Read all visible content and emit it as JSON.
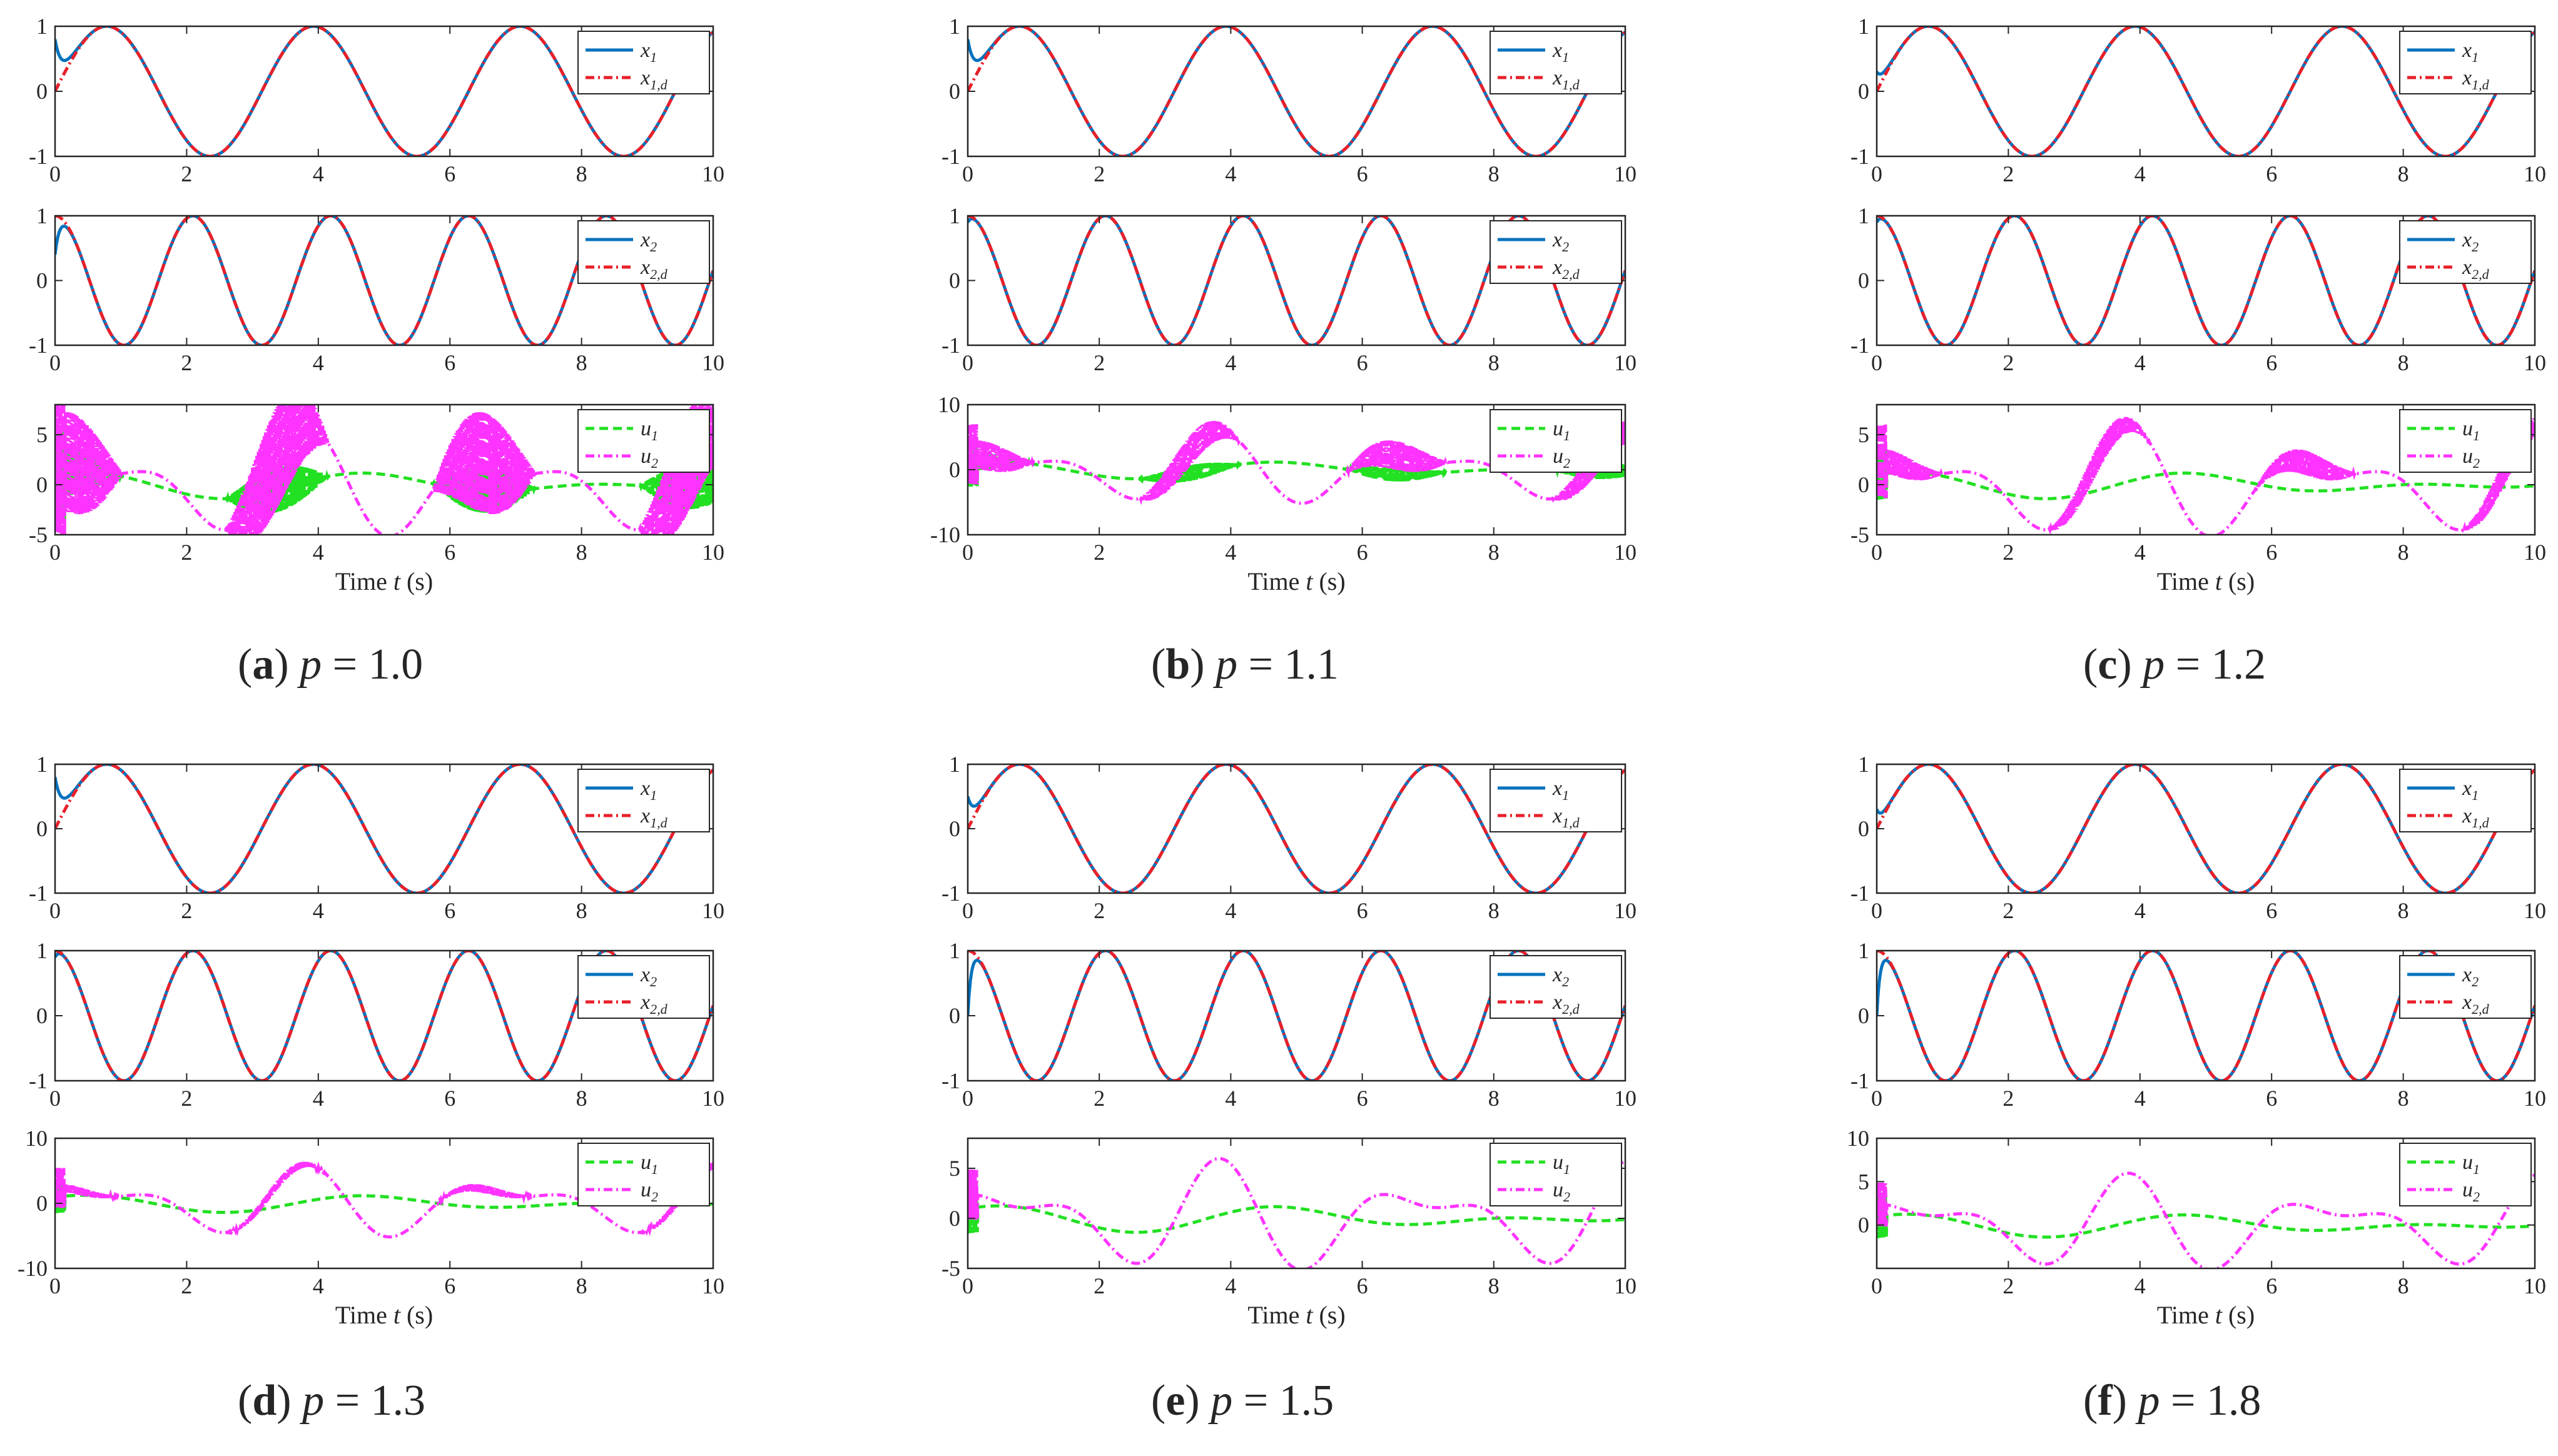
{
  "chart_data": {
    "type": "line",
    "layout": "2x3 grid of panels; each panel has three stacked subplots",
    "colors": {
      "x": "#0072bd",
      "xd": "#e8202a",
      "u1": "#22e022",
      "u2": "#ff33ff",
      "axis": "#262626"
    },
    "panels": [
      {
        "letter": "a",
        "label": "p",
        "value": "1.0",
        "caption": {
          "open": "(",
          "letter": "a",
          "close": ")",
          "variable": "p",
          "equals": "=",
          "value": "1.0"
        },
        "x_ticks": [
          "0",
          "2",
          "4",
          "6",
          "8",
          "10"
        ],
        "xlabel": "Time t (s)",
        "xrange": [
          0,
          10
        ],
        "subplots": [
          {
            "id": "x1",
            "yrange": [
              -1,
              1
            ],
            "y_ticks": [
              "1",
              "0",
              "-1"
            ],
            "series": [
              {
                "name": "x1",
                "legend": "x",
                "legend_sub": "1",
                "style": "solid",
                "signal": "sin(2t)",
                "initial": 0.8,
                "transient_time": 0.3
              },
              {
                "name": "x1d",
                "legend": "x",
                "legend_sub": "1,d",
                "style": "dashdot",
                "signal": "sin(2t)"
              }
            ]
          },
          {
            "id": "x2",
            "yrange": [
              -1,
              1
            ],
            "y_ticks": [
              "1",
              "0",
              "-1"
            ],
            "series": [
              {
                "name": "x2",
                "legend": "x",
                "legend_sub": "2",
                "style": "solid",
                "signal": "cos(3t)",
                "initial": 0.4,
                "transient_time": 0.2
              },
              {
                "name": "x2d",
                "legend": "x",
                "legend_sub": "2,d",
                "style": "dashdot",
                "signal": "cos(3t)"
              }
            ]
          },
          {
            "id": "u",
            "yrange": [
              -5,
              8
            ],
            "y_ticks": [
              "5",
              "0",
              "-5"
            ],
            "series": [
              {
                "name": "u1",
                "legend": "u",
                "legend_sub": "1",
                "style": "dashed",
                "amplitude": 2,
                "chatter": 2.2
              },
              {
                "name": "u2",
                "legend": "u",
                "legend_sub": "2",
                "style": "dashdot",
                "amplitude": 6,
                "chatter": 5
              }
            ]
          }
        ]
      },
      {
        "letter": "b",
        "label": "p",
        "value": "1.1",
        "caption": {
          "open": "(",
          "letter": "b",
          "close": ")",
          "variable": "p",
          "equals": "=",
          "value": "1.1"
        },
        "x_ticks": [
          "0",
          "2",
          "4",
          "6",
          "8",
          "10"
        ],
        "xlabel": "Time t (s)",
        "xrange": [
          0,
          10
        ],
        "subplots": [
          {
            "id": "x1",
            "yrange": [
              -1,
              1
            ],
            "y_ticks": [
              "1",
              "0",
              "-1"
            ],
            "series": [
              {
                "name": "x1",
                "legend": "x",
                "legend_sub": "1",
                "style": "solid",
                "signal": "sin(2t)",
                "initial": 0.8,
                "transient_time": 0.3
              },
              {
                "name": "x1d",
                "legend": "x",
                "legend_sub": "1,d",
                "style": "dashdot",
                "signal": "sin(2t)"
              }
            ]
          },
          {
            "id": "x2",
            "yrange": [
              -1,
              1
            ],
            "y_ticks": [
              "1",
              "0",
              "-1"
            ],
            "series": [
              {
                "name": "x2",
                "legend": "x",
                "legend_sub": "2",
                "style": "solid",
                "signal": "cos(3t)",
                "initial": 0.9,
                "transient_time": 0.15
              },
              {
                "name": "x2d",
                "legend": "x",
                "legend_sub": "2,d",
                "style": "dashdot",
                "signal": "cos(3t)"
              }
            ]
          },
          {
            "id": "u",
            "yrange": [
              -10,
              10
            ],
            "y_ticks": [
              "10",
              "0",
              "-10"
            ],
            "series": [
              {
                "name": "u1",
                "legend": "u",
                "legend_sub": "1",
                "style": "dashed",
                "amplitude": 2,
                "chatter": 1.2
              },
              {
                "name": "u2",
                "legend": "u",
                "legend_sub": "2",
                "style": "dashdot",
                "amplitude": 6,
                "chatter": 2.2
              }
            ]
          }
        ]
      },
      {
        "letter": "c",
        "label": "p",
        "value": "1.2",
        "caption": {
          "open": "(",
          "letter": "c",
          "close": ")",
          "variable": "p",
          "equals": "=",
          "value": "1.2"
        },
        "x_ticks": [
          "0",
          "2",
          "4",
          "6",
          "8",
          "10"
        ],
        "xlabel": "Time t (s)",
        "xrange": [
          0,
          10
        ],
        "subplots": [
          {
            "id": "x1",
            "yrange": [
              -1,
              1
            ],
            "y_ticks": [
              "1",
              "0",
              "-1"
            ],
            "series": [
              {
                "name": "x1",
                "legend": "x",
                "legend_sub": "1",
                "style": "solid",
                "signal": "sin(2t)",
                "initial": 0.3,
                "transient_time": 0.25
              },
              {
                "name": "x1d",
                "legend": "x",
                "legend_sub": "1,d",
                "style": "dashdot",
                "signal": "sin(2t)"
              }
            ]
          },
          {
            "id": "x2",
            "yrange": [
              -1,
              1
            ],
            "y_ticks": [
              "1",
              "0",
              "-1"
            ],
            "series": [
              {
                "name": "x2",
                "legend": "x",
                "legend_sub": "2",
                "style": "solid",
                "signal": "cos(3t)",
                "initial": 0.9,
                "transient_time": 0.15
              },
              {
                "name": "x2d",
                "legend": "x",
                "legend_sub": "2,d",
                "style": "dashdot",
                "signal": "cos(3t)"
              }
            ]
          },
          {
            "id": "u",
            "yrange": [
              -5,
              8
            ],
            "y_ticks": [
              "5",
              "0",
              "-5"
            ],
            "series": [
              {
                "name": "u1",
                "legend": "u",
                "legend_sub": "1",
                "style": "dashed",
                "amplitude": 2,
                "chatter": 0
              },
              {
                "name": "u2",
                "legend": "u",
                "legend_sub": "2",
                "style": "dashdot",
                "amplitude": 6,
                "chatter": 1.2
              }
            ]
          }
        ]
      },
      {
        "letter": "d",
        "label": "p",
        "value": "1.3",
        "caption": {
          "open": "(",
          "letter": "d",
          "close": ")",
          "variable": "p",
          "equals": "=",
          "value": "1.3"
        },
        "x_ticks": [
          "0",
          "2",
          "4",
          "6",
          "8",
          "10"
        ],
        "xlabel": "Time t (s)",
        "xrange": [
          0,
          10
        ],
        "subplots": [
          {
            "id": "x1",
            "yrange": [
              -1,
              1
            ],
            "y_ticks": [
              "1",
              "0",
              "-1"
            ],
            "series": [
              {
                "name": "x1",
                "legend": "x",
                "legend_sub": "1",
                "style": "solid",
                "signal": "sin(2t)",
                "initial": 0.8,
                "transient_time": 0.3
              },
              {
                "name": "x1d",
                "legend": "x",
                "legend_sub": "1,d",
                "style": "dashdot",
                "signal": "sin(2t)"
              }
            ]
          },
          {
            "id": "x2",
            "yrange": [
              -1,
              1
            ],
            "y_ticks": [
              "1",
              "0",
              "-1"
            ],
            "series": [
              {
                "name": "x2",
                "legend": "x",
                "legend_sub": "2",
                "style": "solid",
                "signal": "cos(3t)",
                "initial": 0.9,
                "transient_time": 0.15
              },
              {
                "name": "x2d",
                "legend": "x",
                "legend_sub": "2,d",
                "style": "dashdot",
                "signal": "cos(3t)"
              }
            ]
          },
          {
            "id": "u",
            "yrange": [
              -10,
              10
            ],
            "y_ticks": [
              "10",
              "0",
              "-10"
            ],
            "series": [
              {
                "name": "u1",
                "legend": "u",
                "legend_sub": "1",
                "style": "dashed",
                "amplitude": 2,
                "chatter": 0
              },
              {
                "name": "u2",
                "legend": "u",
                "legend_sub": "2",
                "style": "dashdot",
                "amplitude": 6,
                "chatter": 0.6
              }
            ]
          }
        ]
      },
      {
        "letter": "e",
        "label": "p",
        "value": "1.5",
        "caption": {
          "open": "(",
          "letter": "e",
          "close": ")",
          "variable": "p",
          "equals": "=",
          "value": "1.5"
        },
        "x_ticks": [
          "0",
          "2",
          "4",
          "6",
          "8",
          "10"
        ],
        "xlabel": "Time t (s)",
        "xrange": [
          0,
          10
        ],
        "subplots": [
          {
            "id": "x1",
            "yrange": [
              -1,
              1
            ],
            "y_ticks": [
              "1",
              "0",
              "-1"
            ],
            "series": [
              {
                "name": "x1",
                "legend": "x",
                "legend_sub": "1",
                "style": "solid",
                "signal": "sin(2t)",
                "initial": 0.5,
                "transient_time": 0.25
              },
              {
                "name": "x1d",
                "legend": "x",
                "legend_sub": "1,d",
                "style": "dashdot",
                "signal": "sin(2t)"
              }
            ]
          },
          {
            "id": "x2",
            "yrange": [
              -1,
              1
            ],
            "y_ticks": [
              "1",
              "0",
              "-1"
            ],
            "series": [
              {
                "name": "x2",
                "legend": "x",
                "legend_sub": "2",
                "style": "solid",
                "signal": "cos(3t)",
                "initial": 0.0,
                "transient_time": 0.15
              },
              {
                "name": "x2d",
                "legend": "x",
                "legend_sub": "2,d",
                "style": "dashdot",
                "signal": "cos(3t)"
              }
            ]
          },
          {
            "id": "u",
            "yrange": [
              -5,
              8
            ],
            "y_ticks": [
              "5",
              "0",
              "-5"
            ],
            "series": [
              {
                "name": "u1",
                "legend": "u",
                "legend_sub": "1",
                "style": "dashed",
                "amplitude": 2,
                "chatter": 0
              },
              {
                "name": "u2",
                "legend": "u",
                "legend_sub": "2",
                "style": "dashdot",
                "amplitude": 6,
                "chatter": 0
              }
            ]
          }
        ]
      },
      {
        "letter": "f",
        "label": "p",
        "value": "1.8",
        "caption": {
          "open": "(",
          "letter": "f",
          "close": ")",
          "variable": "p",
          "equals": "=",
          "value": "1.8"
        },
        "x_ticks": [
          "0",
          "2",
          "4",
          "6",
          "8",
          "10"
        ],
        "xlabel": "Time t (s)",
        "xrange": [
          0,
          10
        ],
        "subplots": [
          {
            "id": "x1",
            "yrange": [
              -1,
              1
            ],
            "y_ticks": [
              "1",
              "0",
              "-1"
            ],
            "series": [
              {
                "name": "x1",
                "legend": "x",
                "legend_sub": "1",
                "style": "solid",
                "signal": "sin(2t)",
                "initial": 0.3,
                "transient_time": 0.2
              },
              {
                "name": "x1d",
                "legend": "x",
                "legend_sub": "1,d",
                "style": "dashdot",
                "signal": "sin(2t)"
              }
            ]
          },
          {
            "id": "x2",
            "yrange": [
              -1,
              1
            ],
            "y_ticks": [
              "1",
              "0",
              "-1"
            ],
            "series": [
              {
                "name": "x2",
                "legend": "x",
                "legend_sub": "2",
                "style": "solid",
                "signal": "cos(3t)",
                "initial": 0.0,
                "transient_time": 0.15
              },
              {
                "name": "x2d",
                "legend": "x",
                "legend_sub": "2,d",
                "style": "dashdot",
                "signal": "cos(3t)"
              }
            ]
          },
          {
            "id": "u",
            "yrange": [
              -5,
              10
            ],
            "y_ticks": [
              "10",
              "5",
              "0"
            ],
            "series": [
              {
                "name": "u1",
                "legend": "u",
                "legend_sub": "1",
                "style": "dashed",
                "amplitude": 2,
                "chatter": 0
              },
              {
                "name": "u2",
                "legend": "u",
                "legend_sub": "2",
                "style": "dashdot",
                "amplitude": 6,
                "chatter": 0
              }
            ]
          }
        ]
      }
    ]
  }
}
